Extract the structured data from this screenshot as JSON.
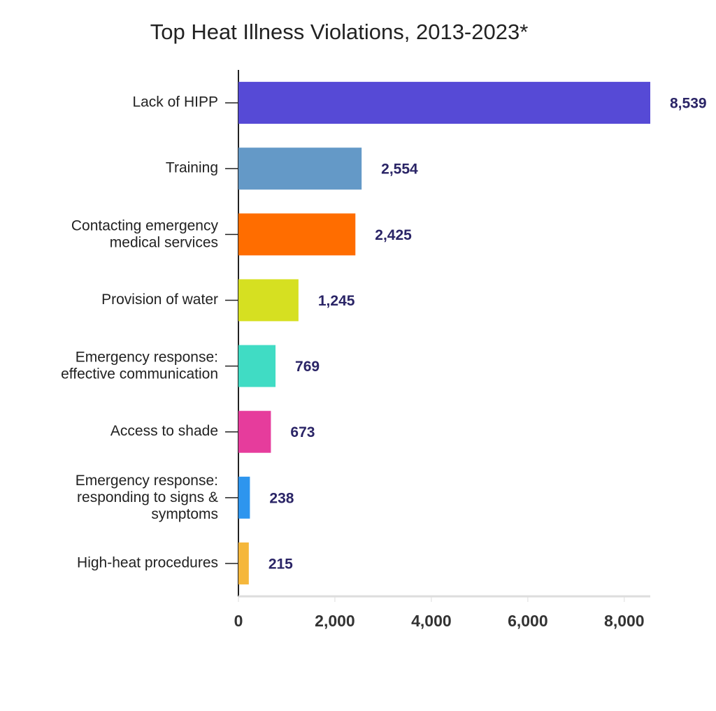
{
  "chart_data": {
    "type": "bar",
    "orientation": "horizontal",
    "title": "Top Heat Illness Violations, 2013-2023*",
    "categories": [
      "Lack of HIPP",
      "Training",
      "Contacting emergency\nmedical services",
      "Provision of water",
      "Emergency response:\neffective communication",
      "Access to shade",
      "Emergency response:\nresponding to signs &\nsymptoms",
      "High-heat procedures"
    ],
    "values": [
      8539,
      2554,
      2425,
      1245,
      769,
      673,
      238,
      215
    ],
    "value_labels": [
      "8,539",
      "2,554",
      "2,425",
      "1,245",
      "769",
      "673",
      "238",
      "215"
    ],
    "colors": [
      "#564ad6",
      "#6499c7",
      "#ff6d00",
      "#d6e021",
      "#40dcc4",
      "#e63c9c",
      "#2d95ee",
      "#f5b73b"
    ],
    "xlim": [
      0,
      8539
    ],
    "xticks": [
      0,
      {
        "value": 2000,
        "label": "2,000"
      },
      {
        "value": 4000,
        "label": "4,000"
      },
      {
        "value": 6000,
        "label": "6,000"
      },
      {
        "value": 8000,
        "label": "8,000"
      }
    ]
  }
}
